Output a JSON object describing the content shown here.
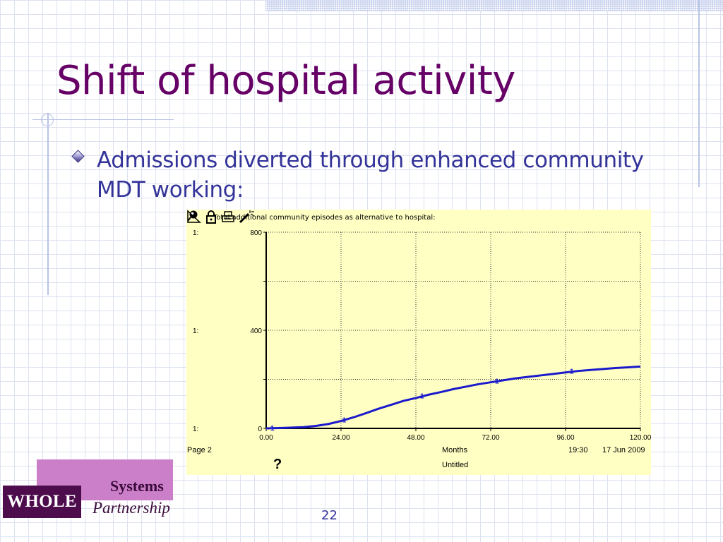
{
  "slide": {
    "title": "Shift of hospital activity",
    "bullet": "Admissions diverted through enhanced community MDT working:",
    "page_number": "22"
  },
  "logo": {
    "systems": "Systems",
    "whole": "WHOLE",
    "partnership": "Partnership"
  },
  "chart_panel": {
    "header_icon": "pin-icon",
    "page_label": "Page 2",
    "time": "19:30",
    "date": "17 Jun 2009",
    "untitled": "Untitled",
    "help": "?",
    "toolbar_icons": [
      "triangle-icon",
      "lock-icon",
      "printer-icon",
      "magic-wand-icon",
      "question-icon"
    ]
  },
  "chart_data": {
    "type": "line",
    "title": "Total additional community episodes as alternative to hospital:",
    "xlabel": "Months",
    "ylabel": "",
    "xlim": [
      0,
      120
    ],
    "ylim": [
      0,
      800
    ],
    "x_ticks": [
      "0.00",
      "24.00",
      "48.00",
      "72.00",
      "96.00",
      "120.00"
    ],
    "y_ticks": [
      "0",
      "400",
      "800"
    ],
    "series_prefix": "1:",
    "grid": true,
    "series": [
      {
        "name": "1",
        "color": "#1a1acc",
        "marker_label": "1",
        "x": [
          0,
          6,
          12,
          16,
          20,
          24,
          28,
          32,
          36,
          40,
          44,
          48,
          52,
          56,
          60,
          64,
          68,
          72,
          76,
          80,
          84,
          88,
          92,
          96,
          100,
          104,
          108,
          112,
          116,
          120
        ],
        "y": [
          0,
          2,
          5,
          10,
          18,
          30,
          45,
          62,
          80,
          96,
          112,
          124,
          137,
          148,
          160,
          170,
          180,
          188,
          196,
          204,
          210,
          216,
          222,
          228,
          234,
          238,
          242,
          246,
          249,
          252
        ],
        "marker_x": [
          2,
          25,
          50,
          74,
          98
        ]
      }
    ]
  }
}
